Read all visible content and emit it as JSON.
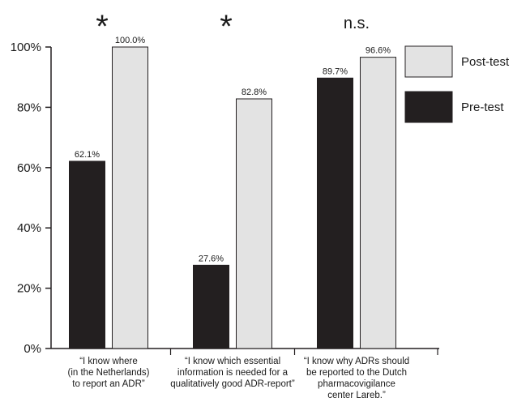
{
  "chart_data": {
    "type": "bar",
    "categories": [
      [
        "“I know where",
        "(in the Netherlands)",
        "to report an ADR”"
      ],
      [
        "“I know which essential",
        "information is needed for a",
        "qualitatively good ADR-report”"
      ],
      [
        "“I know why ADRs should",
        "be reported  to the Dutch",
        "pharmacovigilance",
        "center Lareb.”"
      ]
    ],
    "series": [
      {
        "name": "Pre-test",
        "color": "#231f20",
        "values": [
          62.1,
          27.6,
          89.7
        ],
        "labels": [
          "62.1%",
          "27.6%",
          "89.7%"
        ]
      },
      {
        "name": "Post-test",
        "color": "#e3e3e3",
        "values": [
          100.0,
          82.8,
          96.6
        ],
        "labels": [
          "100.0%",
          "82.8%",
          "96.6%"
        ]
      }
    ],
    "ylim": [
      0,
      100
    ],
    "yticks": [
      0,
      20,
      40,
      60,
      80,
      100
    ],
    "ytick_labels": [
      "0%",
      "20%",
      "40%",
      "60%",
      "80%",
      "100%"
    ],
    "significance": [
      "*",
      "*",
      "n.s."
    ],
    "legend": {
      "placement": "top-right",
      "order": [
        "Post-test",
        "Pre-test"
      ]
    },
    "title": "",
    "xlabel": "",
    "ylabel": "",
    "grid": false
  }
}
